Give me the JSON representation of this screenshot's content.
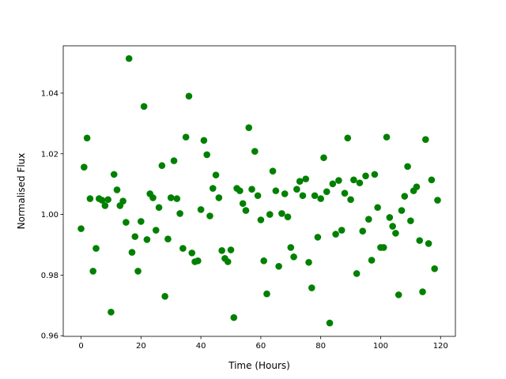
{
  "chart_data": {
    "type": "scatter",
    "xlabel": "Time (Hours)",
    "ylabel": "Normalised Flux",
    "color": "#008000",
    "x": [
      0,
      1,
      2,
      3,
      4,
      5,
      6,
      7,
      8,
      9,
      10,
      11,
      12,
      13,
      14,
      15,
      16,
      17,
      18,
      19,
      20,
      21,
      22,
      23,
      24,
      25,
      26,
      27,
      28,
      29,
      30,
      31,
      32,
      33,
      34,
      35,
      36,
      37,
      38,
      39,
      40,
      41,
      42,
      43,
      44,
      45,
      46,
      47,
      48,
      49,
      50,
      51,
      52,
      53,
      54,
      55,
      56,
      57,
      58,
      59,
      60,
      61,
      62,
      63,
      64,
      65,
      66,
      67,
      68,
      69,
      70,
      71,
      72,
      73,
      74,
      75,
      76,
      77,
      78,
      79,
      80,
      81,
      82,
      83,
      84,
      85,
      86,
      87,
      88,
      89,
      90,
      91,
      92,
      93,
      94,
      95,
      96,
      97,
      98,
      99,
      100,
      101,
      102,
      103,
      104,
      105,
      106,
      107,
      108,
      109,
      110,
      111,
      112,
      113,
      114,
      115,
      116,
      117,
      118,
      119
    ],
    "values": [
      0.9953,
      1.0156,
      1.0252,
      1.0052,
      0.9813,
      0.9888,
      1.0052,
      1.0047,
      1.0029,
      1.0049,
      0.9678,
      1.0132,
      1.0081,
      1.0029,
      1.0044,
      0.9974,
      1.0514,
      0.9875,
      0.9927,
      0.9813,
      0.9977,
      1.0356,
      0.9917,
      1.0068,
      1.0055,
      0.9948,
      1.0023,
      1.0161,
      0.973,
      0.9919,
      1.0055,
      1.0177,
      1.0052,
      1.0003,
      0.9888,
      1.0255,
      1.039,
      0.9873,
      0.9844,
      0.9847,
      1.0016,
      1.0244,
      1.0197,
      0.9995,
      1.0086,
      1.013,
      1.0055,
      0.9881,
      0.9855,
      0.9844,
      0.9883,
      0.966,
      1.0086,
      1.0078,
      1.0036,
      1.0013,
      1.0286,
      1.0083,
      1.0208,
      1.0062,
      0.9982,
      0.9847,
      0.9738,
      1.0,
      1.0143,
      1.0078,
      0.9829,
      1.0003,
      1.0068,
      0.9992,
      0.9891,
      0.986,
      1.0083,
      1.0109,
      1.0062,
      1.0117,
      0.9842,
      0.9758,
      1.0062,
      0.9925,
      1.0052,
      1.0187,
      1.0075,
      0.9642,
      1.0101,
      0.9935,
      1.0112,
      0.9948,
      1.007,
      1.0252,
      1.0049,
      1.0114,
      0.9805,
      1.0104,
      0.9945,
      1.0127,
      0.9984,
      0.9849,
      1.0132,
      1.0023,
      0.9891,
      0.9891,
      1.0255,
      0.999,
      0.9961,
      0.9938,
      0.9735,
      1.0013,
      1.006,
      1.0158,
      0.9979,
      1.0078,
      1.0091,
      0.9914,
      0.9745,
      1.0247,
      0.9904,
      1.0114,
      0.9821,
      1.0047
    ],
    "xlim": [
      -5.95,
      124.95
    ],
    "ylim": [
      0.9598,
      1.0556
    ],
    "xticks": [
      0,
      20,
      40,
      60,
      80,
      100,
      120
    ],
    "yticks": [
      0.96,
      0.98,
      {
        "value": 1,
        "label": "1.00"
      },
      1.02,
      1.04
    ]
  }
}
